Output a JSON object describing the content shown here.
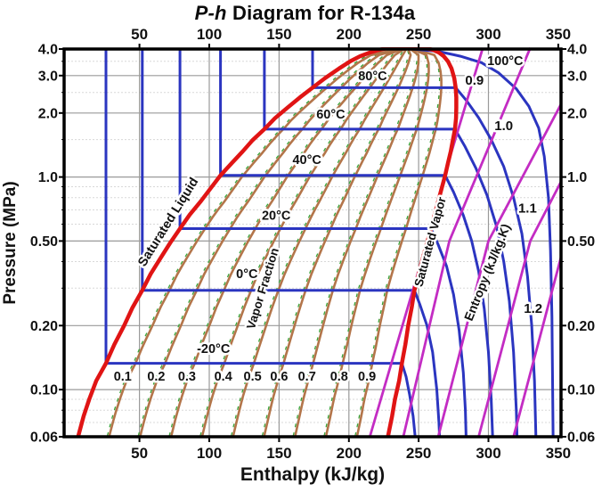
{
  "title": {
    "italic": "P-h",
    "rest": " Diagram for R-134a"
  },
  "chart_data": {
    "type": "line",
    "title": "P-h Diagram for R-134a",
    "xlabel": "Enthalpy (kJ/kg)",
    "ylabel": "Pressure (MPa)",
    "x_domain": [
      -4,
      352
    ],
    "y_domain": [
      0.06,
      4.0
    ],
    "y_scale": "log",
    "x_ticks": [
      50,
      100,
      150,
      200,
      250,
      300,
      350
    ],
    "y_ticks": [
      "4.0",
      "3.0",
      "2.0",
      "1.0",
      "0.50",
      "0.20",
      "0.10",
      "0.06"
    ],
    "y_tick_values": [
      4.0,
      3.0,
      2.0,
      1.0,
      0.5,
      0.2,
      0.1,
      0.06
    ],
    "grid_x": [
      50,
      100,
      150,
      200,
      250,
      300
    ],
    "grid_y": [
      3.0,
      2.0,
      1.0,
      0.5,
      0.2,
      0.1
    ],
    "minor_grid_y": [
      3.5,
      2.5,
      1.5,
      0.9,
      0.8,
      0.7,
      0.6,
      0.4,
      0.3,
      0.09,
      0.08,
      0.07
    ],
    "colors": {
      "saturation": "#e01414",
      "isotherm": "#2b35c0",
      "quality": "#b3754a",
      "quality_dash": "#3aa53a",
      "entropy": "#c32cc3",
      "grid": "#9a9a9a",
      "minor_grid": "#d8d8d8",
      "border": "#000000",
      "text": "#111111"
    },
    "saturation_dome": {
      "liquid": [
        [
          6,
          0.06
        ],
        [
          10,
          0.075
        ],
        [
          14,
          0.09
        ],
        [
          19,
          0.11
        ],
        [
          26,
          0.133
        ],
        [
          32,
          0.163
        ],
        [
          39,
          0.2
        ],
        [
          45,
          0.243
        ],
        [
          52,
          0.293
        ],
        [
          58,
          0.35
        ],
        [
          65,
          0.415
        ],
        [
          72,
          0.49
        ],
        [
          79,
          0.572
        ],
        [
          86,
          0.665
        ],
        [
          94,
          0.77
        ],
        [
          101,
          0.885
        ],
        [
          108,
          1.017
        ],
        [
          116,
          1.16
        ],
        [
          124,
          1.32
        ],
        [
          131,
          1.49
        ],
        [
          139.5,
          1.68
        ],
        [
          147,
          1.89
        ],
        [
          156,
          2.12
        ],
        [
          165,
          2.37
        ],
        [
          174,
          2.63
        ],
        [
          183,
          2.92
        ],
        [
          193,
          3.24
        ],
        [
          201,
          3.5
        ],
        [
          208,
          3.7
        ],
        [
          215,
          3.85
        ],
        [
          222,
          3.97
        ],
        [
          228,
          4.04
        ],
        [
          234,
          4.075
        ],
        [
          242,
          4.09
        ]
      ],
      "vapor": [
        [
          228,
          0.06
        ],
        [
          231,
          0.075
        ],
        [
          233,
          0.09
        ],
        [
          236,
          0.11
        ],
        [
          238,
          0.133
        ],
        [
          240.5,
          0.163
        ],
        [
          242.5,
          0.2
        ],
        [
          245,
          0.243
        ],
        [
          247,
          0.293
        ],
        [
          250,
          0.35
        ],
        [
          253,
          0.415
        ],
        [
          256,
          0.49
        ],
        [
          259,
          0.572
        ],
        [
          261.5,
          0.665
        ],
        [
          264,
          0.77
        ],
        [
          266.5,
          0.885
        ],
        [
          269,
          1.017
        ],
        [
          271,
          1.16
        ],
        [
          273,
          1.32
        ],
        [
          274.5,
          1.49
        ],
        [
          276,
          1.68
        ],
        [
          276.8,
          1.89
        ],
        [
          277,
          2.12
        ],
        [
          277,
          2.37
        ],
        [
          276.5,
          2.63
        ],
        [
          275.5,
          2.92
        ],
        [
          273.5,
          3.24
        ],
        [
          271,
          3.5
        ],
        [
          268,
          3.7
        ],
        [
          264.5,
          3.85
        ],
        [
          260,
          3.97
        ],
        [
          255,
          4.04
        ],
        [
          249,
          4.075
        ],
        [
          242,
          4.09
        ]
      ]
    },
    "isotherms": [
      {
        "label": "-20°C",
        "label_at": [
          103,
          0.149
        ],
        "points": [
          [
            26,
            4.0
          ],
          [
            26,
            0.133
          ],
          [
            238,
            0.133
          ],
          [
            241,
            0.115
          ],
          [
            243.5,
            0.095
          ],
          [
            246,
            0.075
          ],
          [
            247.5,
            0.06
          ]
        ]
      },
      {
        "label": "0°C",
        "label_at": [
          127,
          0.334
        ],
        "points": [
          [
            52,
            4.0
          ],
          [
            52,
            0.293
          ],
          [
            247,
            0.293
          ],
          [
            251,
            0.25
          ],
          [
            256,
            0.2
          ],
          [
            260,
            0.15
          ],
          [
            263,
            0.1
          ],
          [
            264.5,
            0.07
          ],
          [
            265,
            0.06
          ]
        ]
      },
      {
        "label": "20°C",
        "label_at": [
          148,
          0.63
        ],
        "points": [
          [
            79,
            4.0
          ],
          [
            79,
            0.572
          ],
          [
            259,
            0.572
          ],
          [
            264,
            0.48
          ],
          [
            270,
            0.38
          ],
          [
            275,
            0.28
          ],
          [
            279,
            0.19
          ],
          [
            282,
            0.12
          ],
          [
            283.5,
            0.08
          ],
          [
            284,
            0.06
          ]
        ]
      },
      {
        "label": "40°C",
        "label_at": [
          170,
          1.15
        ],
        "points": [
          [
            108,
            4.0
          ],
          [
            108,
            1.017
          ],
          [
            269,
            1.017
          ],
          [
            275,
            0.85
          ],
          [
            282,
            0.66
          ],
          [
            288,
            0.5
          ],
          [
            293,
            0.36
          ],
          [
            297,
            0.24
          ],
          [
            300,
            0.15
          ],
          [
            302,
            0.09
          ],
          [
            303,
            0.06
          ]
        ]
      },
      {
        "label": "60°C",
        "label_at": [
          187,
          1.88
        ],
        "points": [
          [
            139.5,
            4.0
          ],
          [
            139.5,
            1.68
          ],
          [
            276,
            1.68
          ],
          [
            283,
            1.4
          ],
          [
            291,
            1.1
          ],
          [
            299,
            0.82
          ],
          [
            306,
            0.58
          ],
          [
            311,
            0.4
          ],
          [
            315,
            0.26
          ],
          [
            318,
            0.15
          ],
          [
            320,
            0.08
          ],
          [
            320.5,
            0.06
          ]
        ]
      },
      {
        "label": "80°C",
        "label_at": [
          217,
          2.85
        ],
        "points": [
          [
            174,
            4.0
          ],
          [
            174,
            2.63
          ],
          [
            276.5,
            2.63
          ],
          [
            284,
            2.3
          ],
          [
            293,
            1.9
          ],
          [
            302,
            1.5
          ],
          [
            311,
            1.12
          ],
          [
            318,
            0.8
          ],
          [
            324,
            0.54
          ],
          [
            328,
            0.34
          ],
          [
            331,
            0.2
          ],
          [
            333,
            0.11
          ],
          [
            334,
            0.06
          ]
        ]
      },
      {
        "label": "100°C",
        "label_at": [
          312,
          3.36
        ],
        "points": [
          [
            237,
            4.05
          ],
          [
            264,
            3.9
          ],
          [
            280,
            3.7
          ],
          [
            295,
            3.45
          ],
          [
            307,
            3.1
          ],
          [
            320,
            2.6
          ],
          [
            329,
            2.15
          ],
          [
            336,
            1.7
          ],
          [
            340,
            1.25
          ],
          [
            343,
            0.8
          ],
          [
            344.5,
            0.45
          ],
          [
            345.5,
            0.22
          ],
          [
            346,
            0.1
          ],
          [
            346.3,
            0.06
          ]
        ]
      }
    ],
    "quality_lines": {
      "values": [
        0.1,
        0.2,
        0.3,
        0.4,
        0.5,
        0.6,
        0.7,
        0.8,
        0.9
      ],
      "labels": [
        {
          "text": "0.1",
          "at": [
            38,
            0.11
          ]
        },
        {
          "text": "0.2",
          "at": [
            62,
            0.11
          ]
        },
        {
          "text": "0.3",
          "at": [
            84,
            0.11
          ]
        },
        {
          "text": "0.4",
          "at": [
            110,
            0.11
          ]
        },
        {
          "text": "0.5",
          "at": [
            131,
            0.11
          ]
        },
        {
          "text": "0.6",
          "at": [
            150,
            0.11
          ]
        },
        {
          "text": "0.7",
          "at": [
            170,
            0.11
          ]
        },
        {
          "text": "0.8",
          "at": [
            193,
            0.11
          ]
        },
        {
          "text": "0.9",
          "at": [
            213,
            0.11
          ]
        }
      ]
    },
    "entropy_lines": [
      {
        "label": "0.9",
        "label_at": [
          290,
          2.72
        ],
        "points": [
          [
            215,
            0.06
          ],
          [
            258,
            0.55
          ],
          [
            270,
            1.1
          ],
          [
            296,
            4.05
          ]
        ]
      },
      {
        "label": "1.0",
        "label_at": [
          311,
          1.66
        ],
        "points": [
          [
            239,
            0.06
          ],
          [
            272,
            0.5
          ],
          [
            330,
            4.05
          ]
        ]
      },
      {
        "label": "1.1",
        "label_at": [
          328,
          0.68
        ],
        "points": [
          [
            264,
            0.06
          ],
          [
            300,
            0.5
          ],
          [
            352,
            2.2
          ]
        ]
      },
      {
        "label": "1.2",
        "label_at": [
          332,
          0.23
        ],
        "points": [
          [
            293,
            0.06
          ],
          [
            330,
            0.5
          ],
          [
            352,
            0.95
          ]
        ]
      },
      {
        "label": "",
        "label_at": null,
        "points": [
          [
            318,
            0.06
          ],
          [
            352,
            0.42
          ]
        ]
      }
    ],
    "annotations": [
      {
        "text": "Saturated Liquid",
        "at": [
          73,
          0.6
        ],
        "angle": -58,
        "size": 14.5
      },
      {
        "text": "Saturated Vapor",
        "at": [
          261,
          0.49
        ],
        "angle": -75,
        "size": 13.5
      },
      {
        "text": "Vapor Fraction",
        "at": [
          141,
          0.295
        ],
        "angle": -73,
        "size": 13.5
      },
      {
        "text": "Entropy (kJ/kg.K)",
        "at": [
          302,
          0.35
        ],
        "angle": -68,
        "size": 14
      }
    ]
  }
}
